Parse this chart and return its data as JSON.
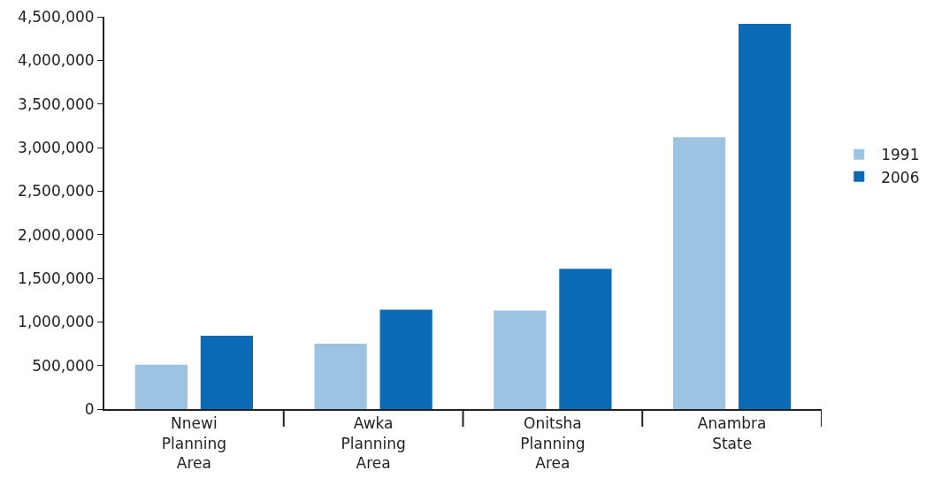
{
  "chart_data": {
    "type": "bar",
    "categories": [
      "Nnewi Planning Area",
      "Awka Planning Area",
      "Onitsha Planning Area",
      "Anambra State"
    ],
    "series": [
      {
        "name": "1991",
        "color": "#9dc3e3",
        "values": [
          510000,
          750000,
          1130000,
          3120000
        ]
      },
      {
        "name": "2006",
        "color": "#0a6ab6",
        "values": [
          840000,
          1140000,
          1610000,
          4420000
        ]
      }
    ],
    "ylim": [
      0,
      4500000
    ],
    "yticks": [
      {
        "value": 0,
        "label": "0"
      },
      {
        "value": 500000,
        "label": "500,000"
      },
      {
        "value": 1000000,
        "label": "1,000,000"
      },
      {
        "value": 1500000,
        "label": "1,500,000"
      },
      {
        "value": 2000000,
        "label": "2,000,000"
      },
      {
        "value": 2500000,
        "label": "2,500,000"
      },
      {
        "value": 3000000,
        "label": "3,000,000"
      },
      {
        "value": 3500000,
        "label": "3,500,000"
      },
      {
        "value": 4000000,
        "label": "4,000,000"
      },
      {
        "value": 4500000,
        "label": "4,500,000"
      }
    ],
    "grid": false,
    "legend": "right"
  }
}
